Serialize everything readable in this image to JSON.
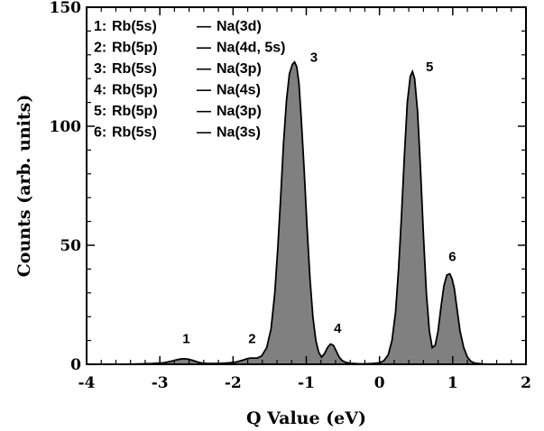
{
  "chart_data": {
    "type": "area",
    "xlabel": "Q Value (eV)",
    "ylabel": "Counts (arb. units)",
    "xlim": [
      -4,
      2
    ],
    "ylim": [
      0,
      150
    ],
    "x_ticks": [
      -4,
      -3,
      -2,
      -1,
      0,
      1,
      2
    ],
    "x_tick_labels": [
      "-4",
      "-3",
      "-2",
      "-1",
      "0",
      "1",
      "2"
    ],
    "y_ticks": [
      0,
      50,
      100,
      150
    ],
    "y_tick_labels": [
      "0",
      "50",
      "100",
      "150"
    ],
    "fill_color": "#808080",
    "legend_position": "top-left",
    "legend": [
      {
        "num": "1:",
        "left": "Rb(5s)",
        "right": "Na(3d)"
      },
      {
        "num": "2:",
        "left": "Rb(5p)",
        "right": "Na(4d, 5s)"
      },
      {
        "num": "3:",
        "left": "Rb(5s)",
        "right": "Na(3p)"
      },
      {
        "num": "4:",
        "left": "Rb(5p)",
        "right": "Na(4s)"
      },
      {
        "num": "5:",
        "left": "Rb(5p)",
        "right": "Na(3p)"
      },
      {
        "num": "6:",
        "left": "Rb(5s)",
        "right": "Na(3s)"
      }
    ],
    "legend_separator": "—",
    "peaks": [
      {
        "label": "1",
        "x": -2.64,
        "y": 2
      },
      {
        "label": "2",
        "x": -1.74,
        "y": 2
      },
      {
        "label": "3",
        "x": -1.13,
        "y": 126
      },
      {
        "label": "4",
        "x": -0.62,
        "y": 8
      },
      {
        "label": "5",
        "x": 0.45,
        "y": 122
      },
      {
        "label": "6",
        "x": 0.97,
        "y": 38
      }
    ],
    "curve": {
      "x": [
        -3.7,
        -3.5,
        -3.3,
        -3.1,
        -2.95,
        -2.85,
        -2.78,
        -2.72,
        -2.66,
        -2.6,
        -2.54,
        -2.48,
        -2.42,
        -2.35,
        -2.25,
        -2.15,
        -2.05,
        -1.95,
        -1.87,
        -1.81,
        -1.76,
        -1.72,
        -1.67,
        -1.61,
        -1.54,
        -1.48,
        -1.43,
        -1.39,
        -1.35,
        -1.31,
        -1.27,
        -1.23,
        -1.19,
        -1.16,
        -1.13,
        -1.1,
        -1.07,
        -1.03,
        -0.99,
        -0.95,
        -0.91,
        -0.87,
        -0.83,
        -0.79,
        -0.75,
        -0.71,
        -0.67,
        -0.63,
        -0.59,
        -0.55,
        -0.51,
        -0.46,
        -0.4,
        -0.34,
        -0.28,
        -0.2,
        -0.1,
        0.0,
        0.06,
        0.12,
        0.17,
        0.22,
        0.26,
        0.3,
        0.34,
        0.38,
        0.42,
        0.45,
        0.48,
        0.52,
        0.56,
        0.6,
        0.64,
        0.68,
        0.72,
        0.76,
        0.8,
        0.84,
        0.88,
        0.92,
        0.96,
        0.99,
        1.02,
        1.06,
        1.1,
        1.15,
        1.2,
        1.25,
        1.3,
        1.4,
        1.55
      ],
      "y": [
        0,
        0,
        0.1,
        0.3,
        0.6,
        1.2,
        1.8,
        2.2,
        2.3,
        2.1,
        1.5,
        0.9,
        0.5,
        0.3,
        0.3,
        0.4,
        0.6,
        1.0,
        1.7,
        2.3,
        2.6,
        2.6,
        2.6,
        3.5,
        7,
        15,
        30,
        48,
        70,
        93,
        111,
        122,
        126,
        127,
        125,
        118,
        104,
        82,
        58,
        36,
        20,
        10,
        5,
        3,
        4.5,
        7,
        8.5,
        8,
        5.5,
        3,
        1.5,
        0.8,
        0.4,
        0.3,
        0.2,
        0.2,
        0.3,
        0.6,
        1.5,
        4,
        10,
        22,
        40,
        62,
        88,
        110,
        121,
        123,
        120,
        106,
        82,
        54,
        30,
        14,
        7,
        8,
        14,
        24,
        33,
        37.5,
        38,
        36,
        32,
        23,
        14,
        7,
        3,
        1.2,
        0.5,
        0.1,
        0
      ]
    }
  }
}
